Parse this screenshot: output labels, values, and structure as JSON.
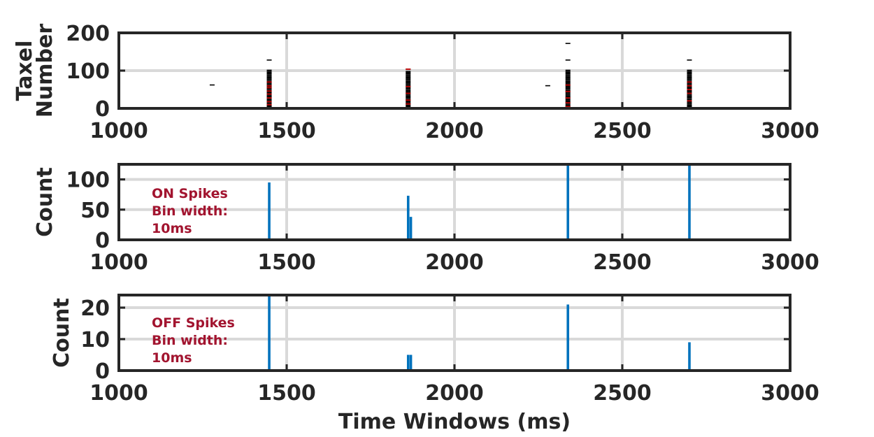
{
  "chart_data": [
    {
      "type": "scatter",
      "title": "",
      "xlabel": "",
      "ylabel": [
        "Taxel",
        "Number"
      ],
      "xlim": [
        1000,
        3000
      ],
      "ylim": [
        0,
        200
      ],
      "xticks": [
        "1000",
        "1500",
        "2000",
        "2500",
        "3000"
      ],
      "yticks": [
        "0",
        "100",
        "200"
      ],
      "grid": true,
      "colors": {
        "on": "#000000",
        "off": "#c00000"
      },
      "bursts": [
        {
          "x": 1278,
          "y": [
            62
          ]
        },
        {
          "x": 1448,
          "y": [
            2,
            5,
            8,
            11,
            14,
            17,
            20,
            23,
            26,
            29,
            32,
            35,
            38,
            41,
            44,
            47,
            50,
            53,
            56,
            59,
            62,
            65,
            68,
            71,
            74,
            77,
            80,
            83,
            86,
            89,
            92,
            95,
            98,
            101,
            128
          ]
        },
        {
          "x": 1862,
          "y": [
            2,
            5,
            8,
            11,
            14,
            17,
            20,
            23,
            26,
            29,
            32,
            35,
            38,
            41,
            44,
            47,
            50,
            53,
            56,
            59,
            62,
            65,
            68,
            71,
            74,
            77,
            80,
            83,
            86,
            89,
            92,
            95,
            98,
            104
          ]
        },
        {
          "x": 2278,
          "y": [
            60
          ]
        },
        {
          "x": 2338,
          "y": [
            2,
            5,
            8,
            11,
            14,
            17,
            20,
            23,
            26,
            29,
            32,
            35,
            38,
            41,
            44,
            47,
            50,
            53,
            56,
            59,
            62,
            65,
            68,
            71,
            74,
            77,
            80,
            83,
            86,
            89,
            92,
            95,
            98,
            101,
            128,
            172
          ]
        },
        {
          "x": 2700,
          "y": [
            2,
            5,
            8,
            11,
            14,
            17,
            20,
            23,
            26,
            29,
            32,
            35,
            38,
            41,
            44,
            47,
            50,
            53,
            56,
            59,
            62,
            65,
            68,
            71,
            74,
            77,
            80,
            83,
            86,
            89,
            92,
            95,
            98,
            101,
            128
          ]
        }
      ],
      "off_points": [
        {
          "x": 1448,
          "y": [
            10,
            18,
            28,
            38,
            46,
            55,
            60,
            70
          ]
        },
        {
          "x": 1862,
          "y": [
            12,
            22,
            40,
            58,
            104
          ]
        },
        {
          "x": 2338,
          "y": [
            5,
            15,
            28,
            45,
            62
          ]
        },
        {
          "x": 2700,
          "y": [
            20,
            40,
            50,
            60,
            70
          ]
        }
      ]
    },
    {
      "type": "bar",
      "title": "",
      "xlabel": "",
      "ylabel": "Count",
      "xlim": [
        1000,
        3000
      ],
      "ylim": [
        0,
        125
      ],
      "xticks": [
        "1000",
        "1500",
        "2000",
        "2500",
        "3000"
      ],
      "yticks": [
        "0",
        "50",
        "100"
      ],
      "grid": true,
      "color": "#0072bd",
      "x": [
        1448,
        1862,
        1870,
        2338,
        2700
      ],
      "values": [
        95,
        73,
        38,
        125,
        125
      ],
      "annotation": [
        "ON Spikes",
        "Bin width:",
        "10ms"
      ]
    },
    {
      "type": "bar",
      "title": "",
      "xlabel": "Time Windows (ms)",
      "ylabel": "Count",
      "xlim": [
        1000,
        3000
      ],
      "ylim": [
        0,
        24
      ],
      "xticks": [
        "1000",
        "1500",
        "2000",
        "2500",
        "3000"
      ],
      "yticks": [
        "0",
        "10",
        "20"
      ],
      "grid": true,
      "color": "#0072bd",
      "x": [
        1448,
        1862,
        1870,
        2338,
        2700
      ],
      "values": [
        24,
        5,
        5,
        21,
        9
      ],
      "annotation": [
        "OFF Spikes",
        "Bin width:",
        "10ms"
      ]
    }
  ]
}
